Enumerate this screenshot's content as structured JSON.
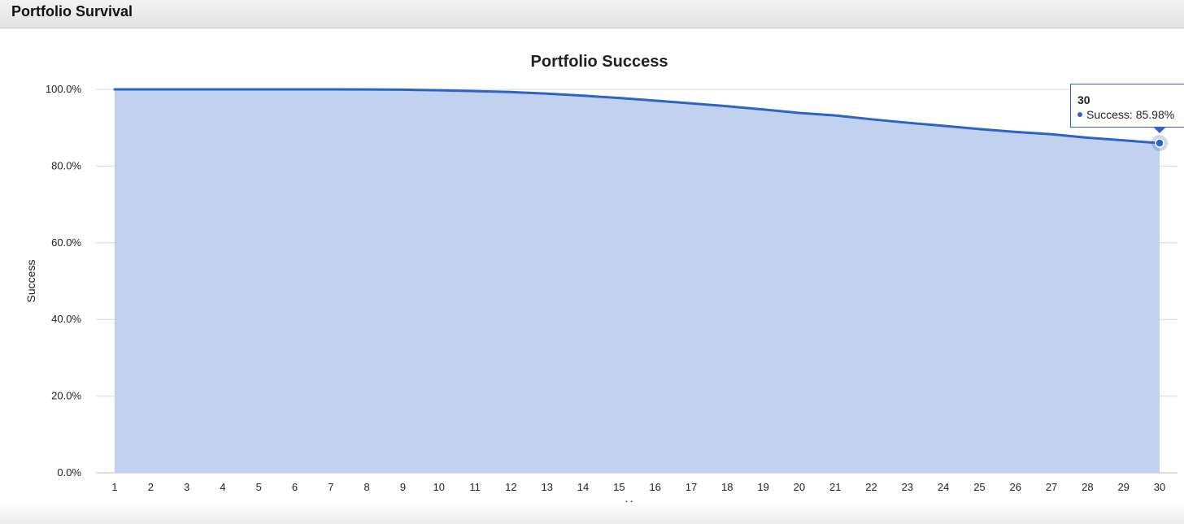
{
  "panel": {
    "title": "Portfolio Survival"
  },
  "colors": {
    "line": "#2f62c6",
    "fill": "#c1d2ef",
    "grid": "#d9d9d9"
  },
  "chart_data": {
    "type": "area",
    "title": "Portfolio Success",
    "xlabel": "Year",
    "ylabel": "Success",
    "x": [
      1,
      2,
      3,
      4,
      5,
      6,
      7,
      8,
      9,
      10,
      11,
      12,
      13,
      14,
      15,
      16,
      17,
      18,
      19,
      20,
      21,
      22,
      23,
      24,
      25,
      26,
      27,
      28,
      29,
      30
    ],
    "series": [
      {
        "name": "Success",
        "values": [
          100.0,
          100.0,
          100.0,
          100.0,
          100.0,
          100.0,
          100.0,
          99.98,
          99.92,
          99.75,
          99.55,
          99.3,
          98.9,
          98.35,
          97.75,
          97.05,
          96.35,
          95.6,
          94.75,
          93.85,
          93.2,
          92.2,
          91.3,
          90.5,
          89.65,
          88.9,
          88.3,
          87.4,
          86.7,
          85.98
        ]
      }
    ],
    "ylim": [
      0,
      100
    ],
    "yticks": [
      "0.0%",
      "20.0%",
      "40.0%",
      "60.0%",
      "80.0%",
      "100.0%"
    ],
    "ytick_values": [
      0,
      20,
      40,
      60,
      80,
      100
    ],
    "grid": true,
    "legend": "none",
    "tooltip": {
      "title": "30",
      "label": "Success: 85.98%"
    }
  }
}
